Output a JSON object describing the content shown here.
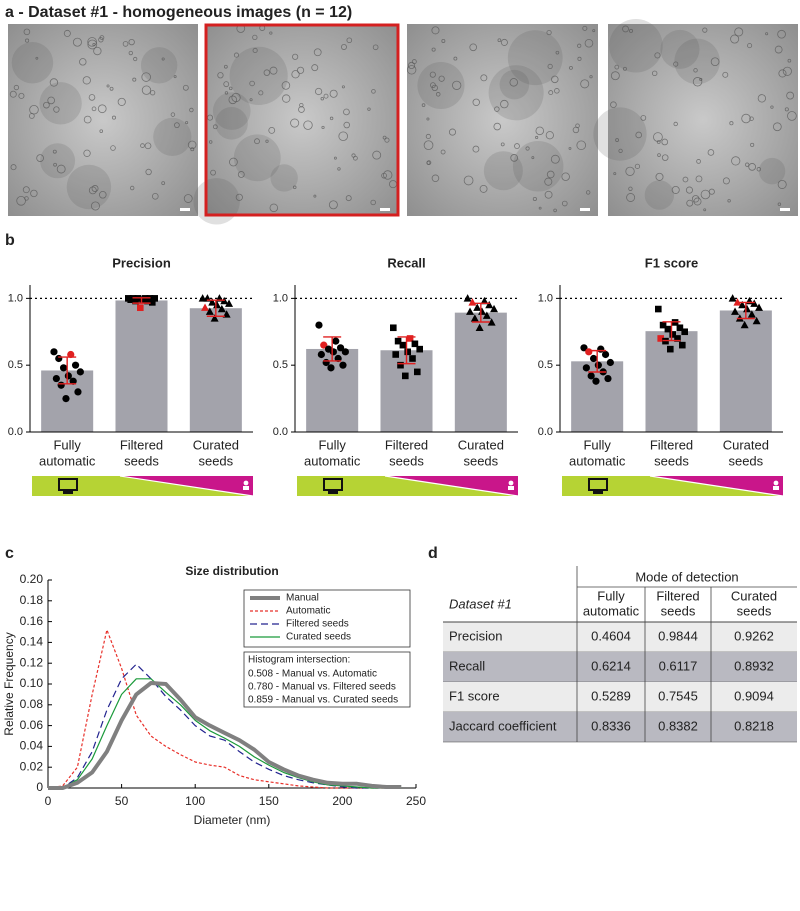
{
  "figure_title": "a - Dataset #1 - homogeneous images (n = 12)",
  "panel_labels": [
    "b",
    "c",
    "d"
  ],
  "chart_data": [
    {
      "type": "bar",
      "title": "Precision",
      "categories": [
        [
          "Fully",
          "automatic"
        ],
        [
          "Filtered",
          "seeds"
        ],
        [
          "Curated",
          "seeds"
        ]
      ],
      "values": [
        0.4604,
        0.9844,
        0.9262
      ],
      "errors": [
        0.1,
        0.02,
        0.06
      ],
      "points": [
        [
          0.6,
          0.58,
          0.55,
          0.5,
          0.48,
          0.45,
          0.42,
          0.4,
          0.38,
          0.35,
          0.3,
          0.25
        ],
        [
          1,
          1,
          1,
          1,
          1,
          1,
          0.99,
          0.99,
          0.98,
          0.98,
          0.97,
          0.93
        ],
        [
          1,
          1,
          1,
          0.98,
          0.97,
          0.96,
          0.95,
          0.93,
          0.92,
          0.9,
          0.88,
          0.85
        ]
      ],
      "highlight": [
        1,
        11,
        7
      ],
      "markers": [
        "circle",
        "square",
        "triangle"
      ],
      "color": "#a3a3ab",
      "point_color": "#000000",
      "highlight_color": "#e02020",
      "error_color": "#e02020",
      "hline": 1,
      "ylim": [
        0,
        1.1
      ],
      "yticks": [
        {
          "value": 0,
          "label": "0.0"
        },
        {
          "value": 0.5,
          "label": "0.5"
        },
        {
          "value": 1,
          "label": "1.0"
        }
      ]
    },
    {
      "type": "bar",
      "title": "Recall",
      "categories": [
        [
          "Fully",
          "automatic"
        ],
        [
          "Filtered",
          "seeds"
        ],
        [
          "Curated",
          "seeds"
        ]
      ],
      "values": [
        0.6214,
        0.6117,
        0.8932
      ],
      "errors": [
        0.09,
        0.1,
        0.07
      ],
      "points": [
        [
          0.8,
          0.68,
          0.65,
          0.63,
          0.62,
          0.6,
          0.6,
          0.58,
          0.55,
          0.52,
          0.5,
          0.48
        ],
        [
          0.78,
          0.7,
          0.68,
          0.66,
          0.65,
          0.62,
          0.6,
          0.58,
          0.55,
          0.5,
          0.45,
          0.42
        ],
        [
          1,
          0.98,
          0.97,
          0.95,
          0.93,
          0.92,
          0.9,
          0.9,
          0.87,
          0.85,
          0.82,
          0.78
        ]
      ],
      "highlight": [
        2,
        1,
        2
      ],
      "markers": [
        "circle",
        "square",
        "triangle"
      ],
      "color": "#a3a3ab",
      "point_color": "#000000",
      "highlight_color": "#e02020",
      "error_color": "#e02020",
      "hline": 1,
      "ylim": [
        0,
        1.1
      ],
      "yticks": [
        {
          "value": 0,
          "label": "0.0"
        },
        {
          "value": 0.5,
          "label": "0.5"
        },
        {
          "value": 1,
          "label": "1.0"
        }
      ]
    },
    {
      "type": "bar",
      "title": "F1 score",
      "categories": [
        [
          "Fully",
          "automatic"
        ],
        [
          "Filtered",
          "seeds"
        ],
        [
          "Curated",
          "seeds"
        ]
      ],
      "values": [
        0.5289,
        0.7545,
        0.9094
      ],
      "errors": [
        0.08,
        0.07,
        0.06
      ],
      "points": [
        [
          0.63,
          0.62,
          0.6,
          0.58,
          0.55,
          0.52,
          0.5,
          0.48,
          0.45,
          0.42,
          0.4,
          0.38
        ],
        [
          0.92,
          0.82,
          0.8,
          0.78,
          0.77,
          0.75,
          0.73,
          0.7,
          0.7,
          0.68,
          0.65,
          0.62
        ],
        [
          1,
          0.98,
          0.97,
          0.96,
          0.95,
          0.93,
          0.92,
          0.9,
          0.88,
          0.85,
          0.83,
          0.8
        ]
      ],
      "highlight": [
        2,
        7,
        2
      ],
      "markers": [
        "circle",
        "square",
        "triangle"
      ],
      "color": "#a3a3ab",
      "point_color": "#000000",
      "highlight_color": "#e02020",
      "error_color": "#e02020",
      "hline": 1,
      "ylim": [
        0,
        1.1
      ],
      "yticks": [
        {
          "value": 0,
          "label": "0.0"
        },
        {
          "value": 0.5,
          "label": "0.5"
        },
        {
          "value": 1,
          "label": "1.0"
        }
      ]
    },
    {
      "type": "line",
      "title": "Size distribution",
      "xlabel": "Diameter  (nm)",
      "ylabel": "Relative Frequency",
      "x": [
        0,
        10,
        20,
        30,
        40,
        50,
        60,
        70,
        80,
        90,
        100,
        110,
        120,
        130,
        140,
        150,
        160,
        170,
        180,
        190,
        200,
        210,
        220,
        230,
        240
      ],
      "series": [
        {
          "name": "Manual",
          "color": "#808080",
          "dash": "solid",
          "width": 4,
          "values": [
            0,
            0,
            0.005,
            0.015,
            0.035,
            0.065,
            0.09,
            0.101,
            0.1,
            0.085,
            0.068,
            0.06,
            0.053,
            0.046,
            0.037,
            0.025,
            0.018,
            0.012,
            0.008,
            0.005,
            0.004,
            0.004,
            0.002,
            0.001,
            0.001
          ]
        },
        {
          "name": "Automatic",
          "color": "#e8302a",
          "dash": "dotted",
          "width": 1.2,
          "values": [
            0,
            0.002,
            0.02,
            0.09,
            0.152,
            0.115,
            0.07,
            0.05,
            0.04,
            0.032,
            0.025,
            0.022,
            0.02,
            0.012,
            0.008,
            0.006,
            0.004,
            0.002,
            0.001,
            0,
            0,
            0,
            0,
            0,
            0
          ]
        },
        {
          "name": "Filtered seeds",
          "color": "#23238f",
          "dash": "dashed",
          "width": 1.2,
          "values": [
            0,
            0,
            0.01,
            0.035,
            0.075,
            0.105,
            0.119,
            0.105,
            0.088,
            0.075,
            0.06,
            0.05,
            0.046,
            0.035,
            0.025,
            0.018,
            0.012,
            0.008,
            0.005,
            0.003,
            0.001,
            0,
            0,
            0,
            0
          ]
        },
        {
          "name": "Curated seeds",
          "color": "#1a9a3a",
          "dash": "solid",
          "width": 1.2,
          "values": [
            0,
            0,
            0.008,
            0.028,
            0.06,
            0.09,
            0.105,
            0.105,
            0.092,
            0.08,
            0.065,
            0.055,
            0.048,
            0.04,
            0.03,
            0.022,
            0.015,
            0.01,
            0.006,
            0.003,
            0.002,
            0.001,
            0,
            0,
            0
          ]
        }
      ],
      "xlim": [
        0,
        250
      ],
      "xticks": [
        0,
        50,
        100,
        150,
        200,
        250
      ],
      "ylim": [
        0,
        0.2
      ],
      "yticks": [
        0,
        0.02,
        0.04,
        0.06,
        0.08,
        {
          "value": 0.1,
          "label": "0.10"
        },
        0.12,
        0.14,
        0.16,
        0.18,
        {
          "value": 0.2,
          "label": "0.20"
        }
      ],
      "annotation": {
        "title": "Histogram intersection:",
        "lines": [
          "0.508 - Manual vs. Automatic",
          "0.780 - Manual vs. Filtered seeds",
          "0.859 - Manual vs. Curated seeds"
        ]
      }
    }
  ],
  "table": {
    "corner": "Dataset #1",
    "group_header": "Mode of detection",
    "columns": [
      [
        "Fully",
        "automatic"
      ],
      [
        "Filtered",
        "seeds"
      ],
      [
        "Curated",
        "seeds"
      ]
    ],
    "rows": [
      {
        "label": "Precision",
        "values": [
          0.4604,
          0.9844,
          0.9262
        ]
      },
      {
        "label": "Recall",
        "values": [
          0.6214,
          0.6117,
          0.8932
        ]
      },
      {
        "label": "F1 score",
        "values": [
          0.5289,
          0.7545,
          0.9094
        ]
      },
      {
        "label": "Jaccard coefficient",
        "values": [
          0.8336,
          0.8382,
          0.8218
        ]
      }
    ]
  }
}
